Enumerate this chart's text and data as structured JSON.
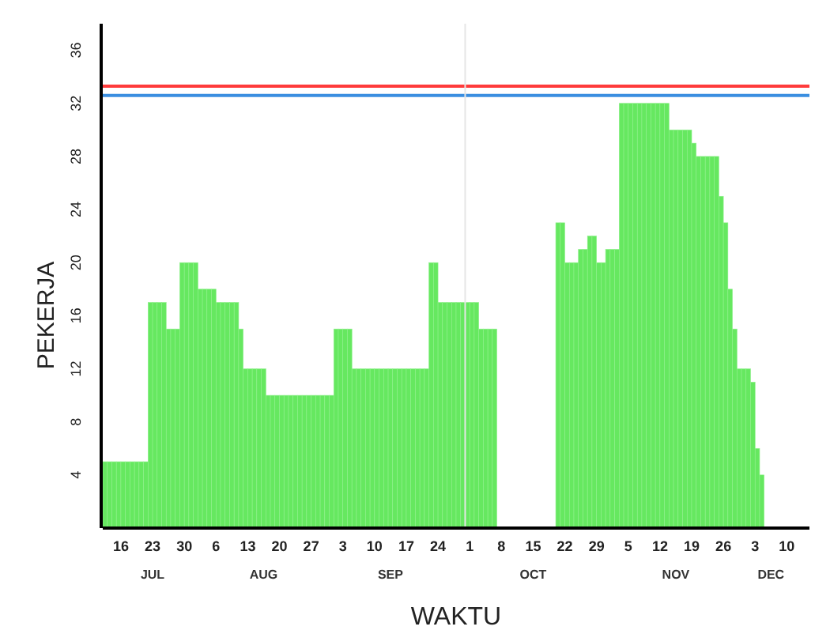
{
  "chart_data": {
    "type": "bar",
    "xlabel": "WAKTU",
    "ylabel": "PEKERJA",
    "x": [
      "--07-12",
      "--07-13",
      "--07-14",
      "--07-15",
      "--07-16",
      "--07-17",
      "--07-18",
      "--07-19",
      "--07-20",
      "--07-21",
      "--07-22",
      "--07-23",
      "--07-24",
      "--07-25",
      "--07-26",
      "--07-27",
      "--07-28",
      "--07-29",
      "--07-30",
      "--07-31",
      "--08-01",
      "--08-02",
      "--08-03",
      "--08-04",
      "--08-05",
      "--08-06",
      "--08-07",
      "--08-08",
      "--08-09",
      "--08-10",
      "--08-11",
      "--08-12",
      "--08-13",
      "--08-14",
      "--08-15",
      "--08-16",
      "--08-17",
      "--08-18",
      "--08-19",
      "--08-20",
      "--08-21",
      "--08-22",
      "--08-23",
      "--08-24",
      "--08-25",
      "--08-26",
      "--08-27",
      "--08-28",
      "--08-29",
      "--08-30",
      "--08-31",
      "--09-01",
      "--09-02",
      "--09-03",
      "--09-04",
      "--09-05",
      "--09-06",
      "--09-07",
      "--09-08",
      "--09-09",
      "--09-10",
      "--09-11",
      "--09-12",
      "--09-13",
      "--09-14",
      "--09-15",
      "--09-16",
      "--09-17",
      "--09-18",
      "--09-19",
      "--09-20",
      "--09-21",
      "--09-22",
      "--09-23",
      "--09-24",
      "--09-25",
      "--09-26",
      "--09-27",
      "--09-28",
      "--09-29",
      "--09-30",
      "--10-01",
      "--10-02",
      "--10-03",
      "--10-04",
      "--10-05",
      "--10-06",
      "--10-07",
      "--10-08",
      "--10-09",
      "--10-10",
      "--10-11",
      "--10-12",
      "--10-13",
      "--10-14",
      "--10-15",
      "--10-16",
      "--10-17",
      "--10-18",
      "--10-19",
      "--10-20",
      "--10-21",
      "--10-22",
      "--10-23",
      "--10-24",
      "--10-25",
      "--10-26",
      "--10-27",
      "--10-28",
      "--10-29",
      "--10-30",
      "--10-31",
      "--11-01",
      "--11-02",
      "--11-03",
      "--11-04",
      "--11-05",
      "--11-06",
      "--11-07",
      "--11-08",
      "--11-09",
      "--11-10",
      "--11-11",
      "--11-12",
      "--11-13",
      "--11-14",
      "--11-15",
      "--11-16",
      "--11-17",
      "--11-18",
      "--11-19",
      "--11-20",
      "--11-21",
      "--11-22",
      "--11-23",
      "--11-24",
      "--11-25",
      "--11-26",
      "--11-27",
      "--11-28",
      "--11-29",
      "--11-30",
      "--12-01",
      "--12-02",
      "--12-03",
      "--12-04"
    ],
    "series": [
      {
        "color": "#66e860",
        "values": [
          5,
          5,
          5,
          5,
          5,
          5,
          5,
          5,
          5,
          5,
          17,
          17,
          17,
          17,
          15,
          15,
          15,
          20,
          20,
          20,
          20,
          18,
          18,
          18,
          18,
          17,
          17,
          17,
          17,
          17,
          15,
          12,
          12,
          12,
          12,
          12,
          10,
          10,
          10,
          10,
          10,
          10,
          10,
          10,
          10,
          10,
          10,
          10,
          10,
          10,
          10,
          15,
          15,
          15,
          15,
          12,
          12,
          12,
          12,
          12,
          12,
          12,
          12,
          12,
          12,
          12,
          12,
          12,
          12,
          12,
          12,
          12,
          20,
          20,
          17,
          17,
          17,
          17,
          17,
          17,
          17,
          17,
          17,
          15,
          15,
          15,
          15,
          null,
          null,
          null,
          null,
          null,
          null,
          null,
          null,
          null,
          null,
          null,
          null,
          null,
          23,
          23,
          20,
          20,
          20,
          21,
          21,
          22,
          22,
          20,
          20,
          21,
          21,
          21,
          32,
          32,
          32,
          32,
          32,
          32,
          32,
          32,
          32,
          32,
          32,
          30,
          30,
          30,
          30,
          30,
          29,
          28,
          28,
          28,
          28,
          28,
          25,
          23,
          18,
          15,
          12,
          12,
          12,
          11,
          6,
          4
        ]
      }
    ],
    "xlim": [
      "--07-12",
      "--12-15"
    ],
    "xticks": [
      {
        "value": "--07-16",
        "label": "16"
      },
      {
        "value": "--07-23",
        "label": "23"
      },
      {
        "value": "--07-30",
        "label": "30"
      },
      {
        "value": "--08-06",
        "label": "6"
      },
      {
        "value": "--08-13",
        "label": "13"
      },
      {
        "value": "--08-20",
        "label": "20"
      },
      {
        "value": "--08-27",
        "label": "27"
      },
      {
        "value": "--09-03",
        "label": "3"
      },
      {
        "value": "--09-10",
        "label": "10"
      },
      {
        "value": "--09-17",
        "label": "17"
      },
      {
        "value": "--09-24",
        "label": "24"
      },
      {
        "value": "--10-01",
        "label": "1"
      },
      {
        "value": "--10-08",
        "label": "8"
      },
      {
        "value": "--10-15",
        "label": "15"
      },
      {
        "value": "--10-22",
        "label": "22"
      },
      {
        "value": "--10-29",
        "label": "29"
      },
      {
        "value": "--11-05",
        "label": "5"
      },
      {
        "value": "--11-12",
        "label": "12"
      },
      {
        "value": "--11-19",
        "label": "19"
      },
      {
        "value": "--11-26",
        "label": "26"
      },
      {
        "value": "--12-03",
        "label": "3"
      },
      {
        "value": "--12-10",
        "label": "10"
      }
    ],
    "ylim": [
      0,
      38
    ],
    "yticks": [
      4,
      8,
      12,
      16,
      20,
      24,
      28,
      32,
      36
    ],
    "ref_lines": [
      {
        "axis": "y",
        "value": 33.3,
        "color": "#ff3b3b"
      },
      {
        "axis": "y",
        "value": 32.6,
        "color": "#3a8ee0"
      },
      {
        "axis": "x",
        "value": "--09-30",
        "color": "#e6e6e6"
      }
    ],
    "annotations": [
      "JUL",
      "AUG",
      "SEP",
      "OCT",
      "NOV",
      "DEC"
    ],
    "grid": false
  }
}
